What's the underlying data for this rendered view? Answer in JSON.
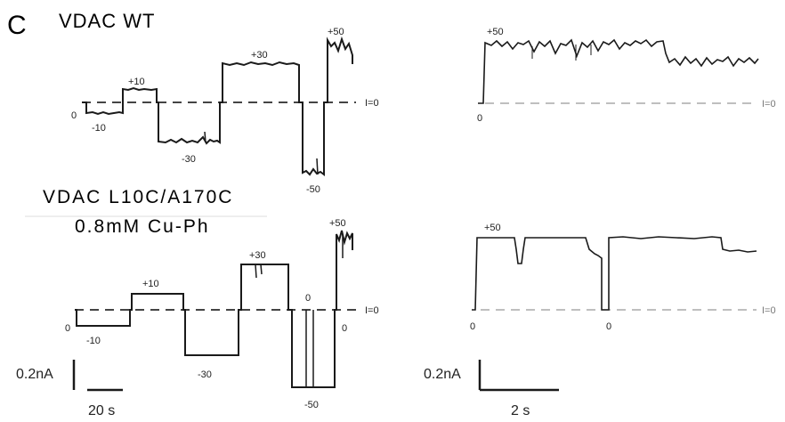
{
  "figure": {
    "panel_label": "C",
    "wt_title": "VDAC WT",
    "mut_title_line1": "VDAC L10C/A170C",
    "mut_title_line2": "0.8mM Cu-Ph",
    "baseline_label": "I=0",
    "scale_current": "0.2nA",
    "scale_time_left": "20 s",
    "scale_time_right": "2 s",
    "wt_left_levels": [
      "0",
      "-10",
      "+10",
      "-30",
      "+30",
      "-50",
      "+50"
    ],
    "wt_right_levels": [
      "+50",
      "0"
    ],
    "mut_left_levels": [
      "0",
      "-10",
      "+10",
      "-30",
      "+30",
      "0",
      "-50",
      "0",
      "+50"
    ],
    "mut_right_levels": [
      "+50",
      "0",
      "0"
    ],
    "colors": {
      "trace": "#1a1a1a",
      "baseline_dark": "#444444",
      "baseline_light": "#aaaaaa"
    }
  }
}
